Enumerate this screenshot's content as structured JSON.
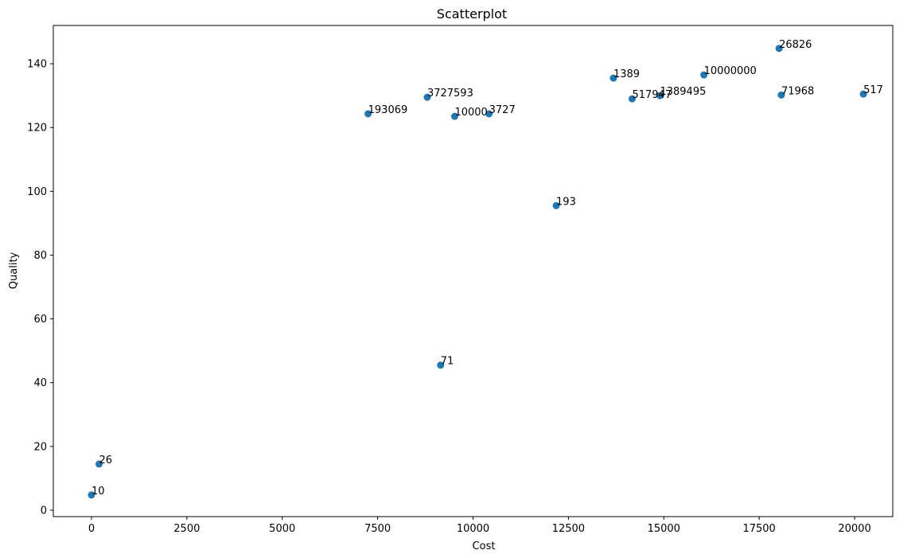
{
  "chart_data": {
    "type": "scatter",
    "title": "Scatterplot",
    "xlabel": "Cost",
    "ylabel": "Quality",
    "xlim": [
      -1000,
      21000
    ],
    "ylim": [
      -2,
      152
    ],
    "xticks": [
      0,
      2500,
      5000,
      7500,
      10000,
      12500,
      15000,
      17500,
      20000
    ],
    "yticks": [
      0,
      20,
      40,
      60,
      80,
      100,
      120,
      140
    ],
    "grid": false,
    "marker_color": "#1f77b4",
    "points": [
      {
        "label": "10",
        "x": 0,
        "y": 4.8
      },
      {
        "label": "26",
        "x": 200,
        "y": 14.5
      },
      {
        "label": "71",
        "x": 9150,
        "y": 45.5
      },
      {
        "label": "193",
        "x": 12180,
        "y": 95.5
      },
      {
        "label": "193069",
        "x": 7250,
        "y": 124.3
      },
      {
        "label": "3727593",
        "x": 8800,
        "y": 129.5
      },
      {
        "label": "10000",
        "x": 9520,
        "y": 123.5
      },
      {
        "label": "3727",
        "x": 10420,
        "y": 124.3
      },
      {
        "label": "1389",
        "x": 13680,
        "y": 135.5
      },
      {
        "label": "517947",
        "x": 14170,
        "y": 129.0
      },
      {
        "label": "1389495",
        "x": 14900,
        "y": 130.0
      },
      {
        "label": "10000000",
        "x": 16050,
        "y": 136.5
      },
      {
        "label": "26826",
        "x": 18020,
        "y": 144.8
      },
      {
        "label": "71968",
        "x": 18080,
        "y": 130.2
      },
      {
        "label": "517",
        "x": 20230,
        "y": 130.5
      }
    ]
  }
}
